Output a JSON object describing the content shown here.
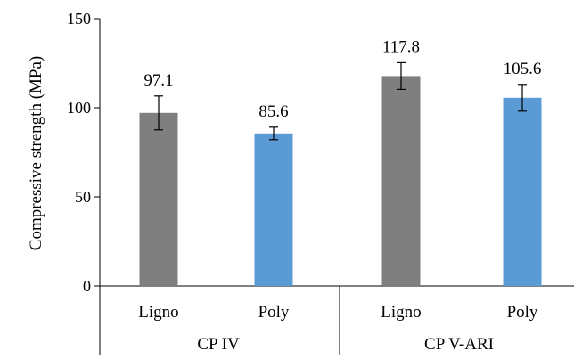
{
  "chart_data": {
    "type": "bar",
    "categories": [
      {
        "label": "Ligno",
        "group": "CP IV",
        "value": 97.1,
        "error": 9.5,
        "data_label": "97.1"
      },
      {
        "label": "Poly",
        "group": "CP IV",
        "value": 85.6,
        "error": 3.5,
        "data_label": "85.6"
      },
      {
        "label": "Ligno",
        "group": "CP V-ARI",
        "value": 117.8,
        "error": 7.5,
        "data_label": "117.8"
      },
      {
        "label": "Poly",
        "group": "CP V-ARI",
        "value": 105.6,
        "error": 7.5,
        "data_label": "105.6"
      }
    ],
    "groups": [
      "CP IV",
      "CP V-ARI"
    ],
    "ylabel": "Compressive strength (MPa)",
    "ylim": [
      0,
      150
    ],
    "yticks": [
      0,
      50,
      100,
      150
    ],
    "ytick_labels": [
      "0",
      "50",
      "100",
      "150"
    ],
    "grid": false,
    "colors": {
      "Ligno": "#7f7f7f",
      "Poly": "#5b9bd5",
      "axis": "#000000"
    }
  }
}
